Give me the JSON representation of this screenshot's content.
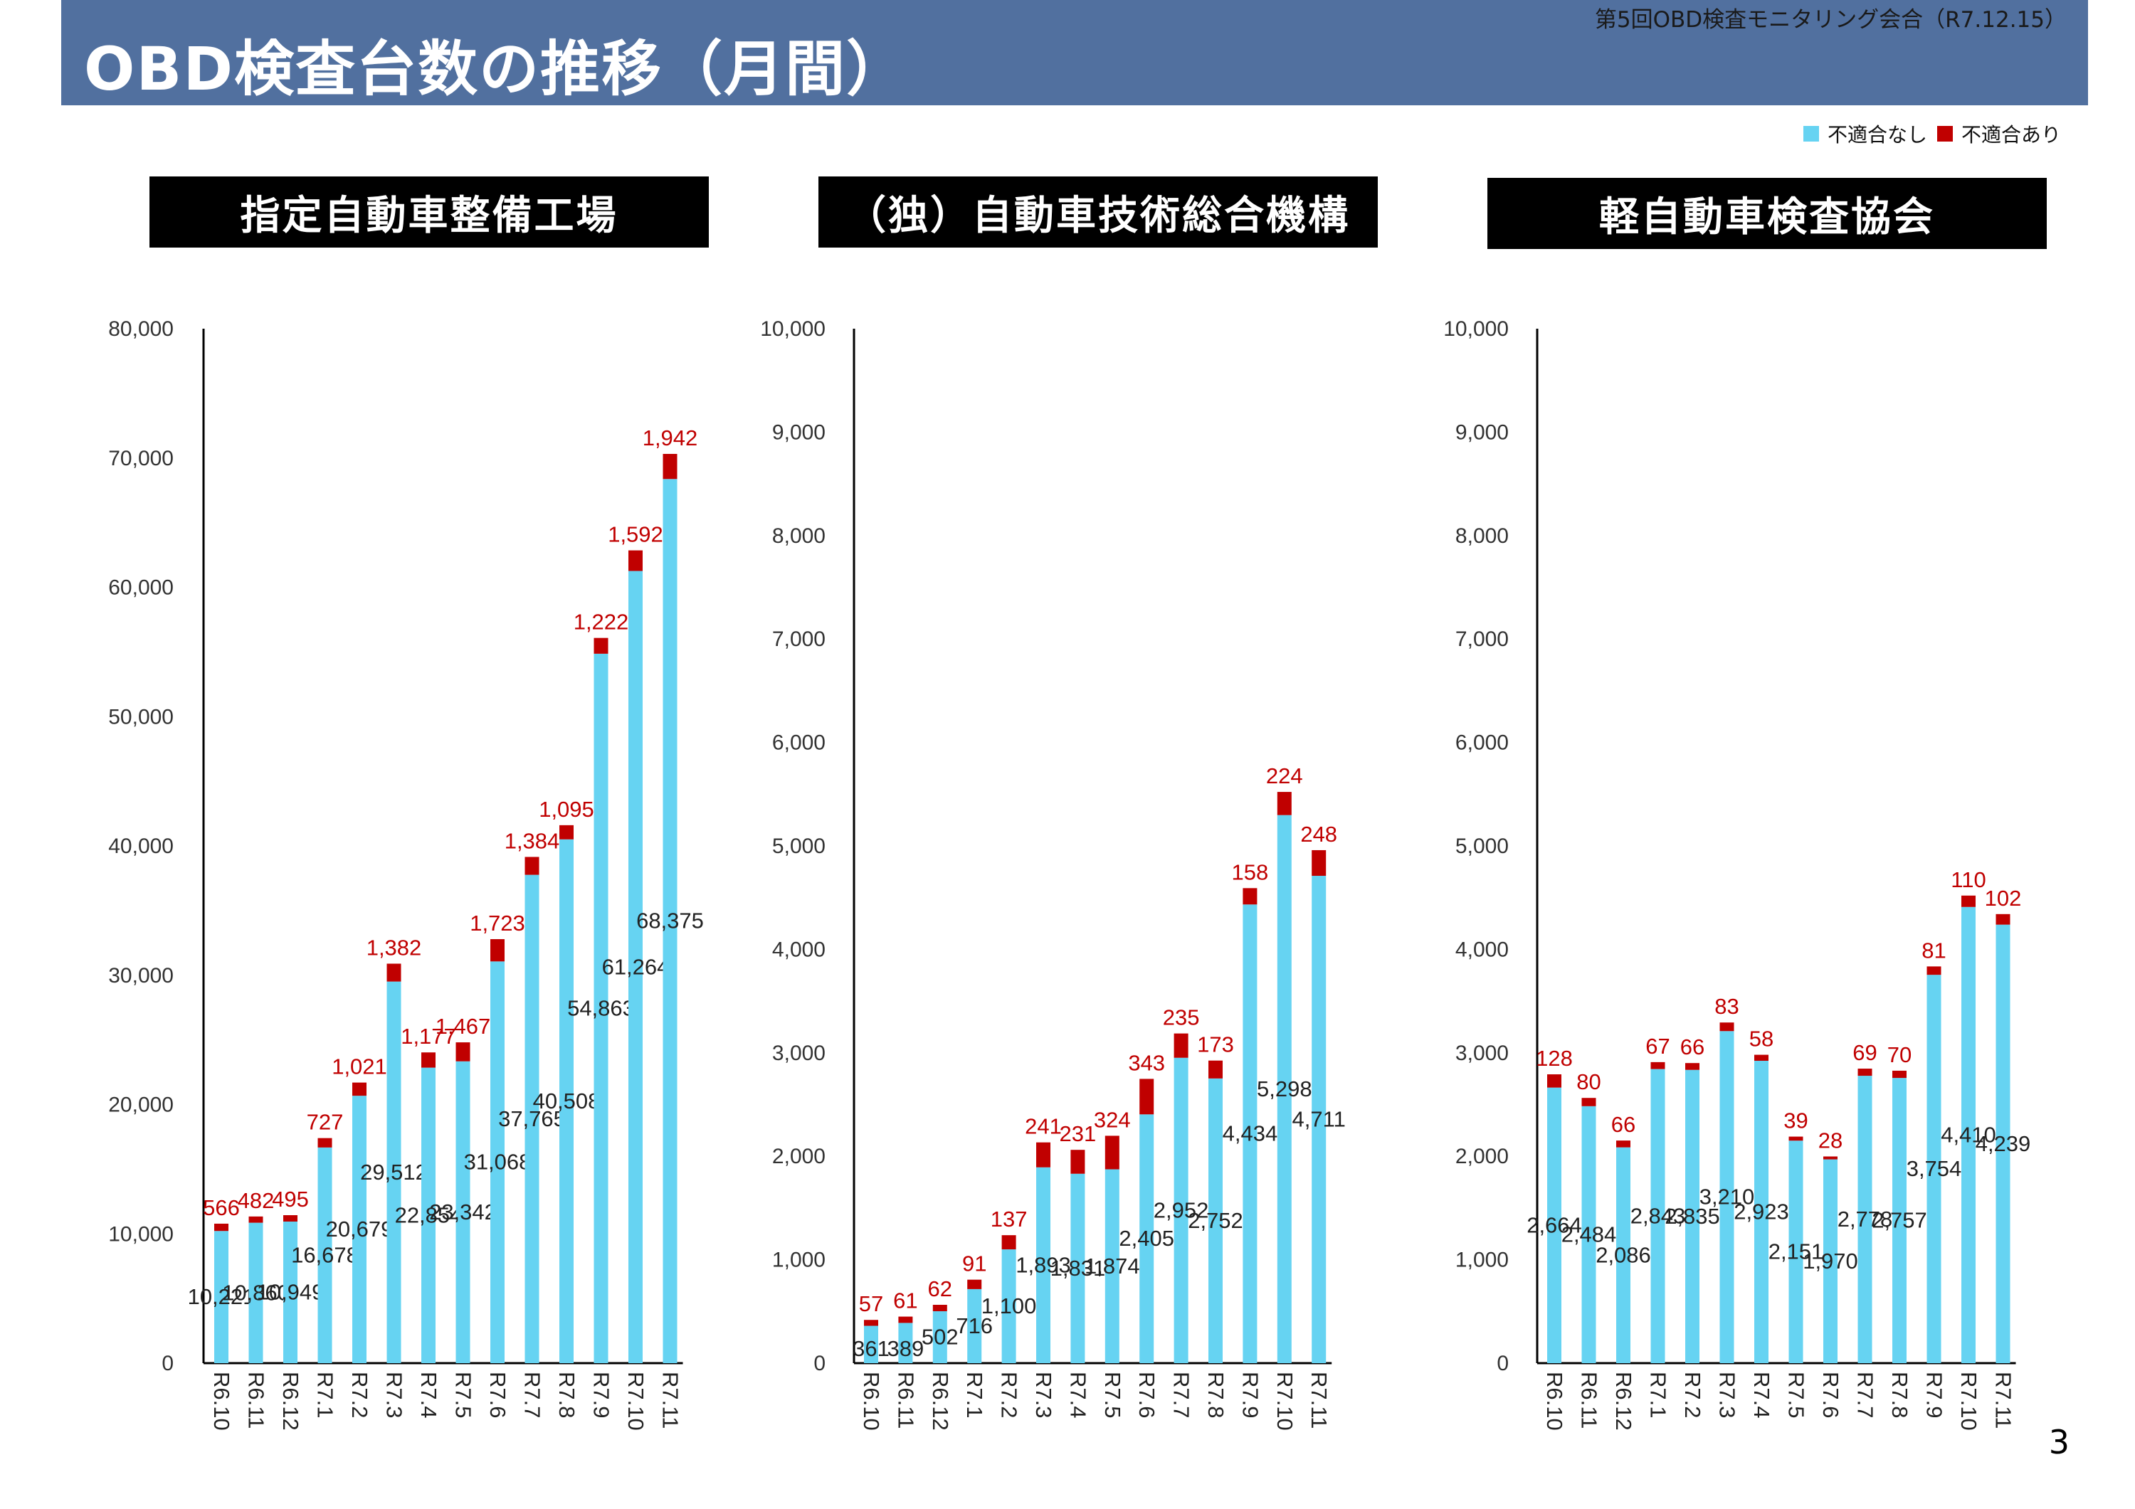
{
  "header": {
    "title": "OBD検査台数の推移（月間）",
    "meeting": "第5回OBD検査モニタリング会合（R7.12.15）"
  },
  "legend": {
    "no_fail": "不適合なし",
    "fail": "不適合あり"
  },
  "colors": {
    "no_fail": "#66d3f2",
    "fail": "#c00000",
    "fail_label": "#c00000",
    "header_bg": "#51709f"
  },
  "page_number": "3",
  "chart_data": [
    {
      "type": "bar",
      "stacked": true,
      "title": "指定自動車整備工場",
      "categories": [
        "R6.10",
        "R6.11",
        "R6.12",
        "R7.1",
        "R7.2",
        "R7.3",
        "R7.4",
        "R7.5",
        "R7.6",
        "R7.7",
        "R7.8",
        "R7.9",
        "R7.10",
        "R7.11"
      ],
      "ylim": [
        0,
        80000
      ],
      "yticks": [
        0,
        10000,
        20000,
        30000,
        40000,
        50000,
        60000,
        70000,
        80000
      ],
      "ytick_labels": [
        "0",
        "10,000",
        "20,000",
        "30,000",
        "40,000",
        "50,000",
        "60,000",
        "70,000",
        "80,000"
      ],
      "series": [
        {
          "name": "不適合なし",
          "values": [
            10221,
            10860,
            10949,
            16678,
            20679,
            29512,
            22854,
            23342,
            31068,
            37765,
            40508,
            54863,
            61264,
            68375
          ],
          "labels": [
            "10,221",
            "10,860",
            "10,949",
            "16,678",
            "20,679",
            "29,512",
            "22,854",
            "23,342",
            "31,068",
            "37,765",
            "40,508",
            "54,863",
            "61,264",
            "68,375"
          ]
        },
        {
          "name": "不適合あり",
          "values": [
            566,
            482,
            495,
            727,
            1021,
            1382,
            1177,
            1467,
            1723,
            1384,
            1095,
            1222,
            1592,
            1942
          ],
          "labels": [
            "566",
            "482",
            "495",
            "727",
            "1,021",
            "1,382",
            "1,177",
            "1,467",
            "1,723",
            "1,384",
            "1,095",
            "1,222",
            "1,592",
            "1,942"
          ]
        }
      ]
    },
    {
      "type": "bar",
      "stacked": true,
      "title": "（独）自動車技術総合機構",
      "categories": [
        "R6.10",
        "R6.11",
        "R6.12",
        "R7.1",
        "R7.2",
        "R7.3",
        "R7.4",
        "R7.5",
        "R7.6",
        "R7.7",
        "R7.8",
        "R7.9",
        "R7.10",
        "R7.11"
      ],
      "ylim": [
        0,
        10000
      ],
      "yticks": [
        0,
        1000,
        2000,
        3000,
        4000,
        5000,
        6000,
        7000,
        8000,
        9000,
        10000
      ],
      "ytick_labels": [
        "0",
        "1,000",
        "2,000",
        "3,000",
        "4,000",
        "5,000",
        "6,000",
        "7,000",
        "8,000",
        "9,000",
        "10,000"
      ],
      "series": [
        {
          "name": "不適合なし",
          "values": [
            361,
            389,
            502,
            716,
            1100,
            1893,
            1831,
            1874,
            2405,
            2952,
            2752,
            4434,
            5298,
            4711
          ],
          "labels": [
            "361",
            "389",
            "502",
            "716",
            "1,100",
            "1,893",
            "1,831",
            "1,874",
            "2,405",
            "2,952",
            "2,752",
            "4,434",
            "5,298",
            "4,711"
          ]
        },
        {
          "name": "不適合あり",
          "values": [
            57,
            61,
            62,
            91,
            137,
            241,
            231,
            324,
            343,
            235,
            173,
            158,
            224,
            248
          ],
          "labels": [
            "57",
            "61",
            "62",
            "91",
            "137",
            "241",
            "231",
            "324",
            "343",
            "235",
            "173",
            "158",
            "224",
            "248"
          ]
        }
      ]
    },
    {
      "type": "bar",
      "stacked": true,
      "title": "軽自動車検査協会",
      "categories": [
        "R6.10",
        "R6.11",
        "R6.12",
        "R7.1",
        "R7.2",
        "R7.3",
        "R7.4",
        "R7.5",
        "R7.6",
        "R7.7",
        "R7.8",
        "R7.9",
        "R7.10",
        "R7.11"
      ],
      "ylim": [
        0,
        10000
      ],
      "yticks": [
        0,
        1000,
        2000,
        3000,
        4000,
        5000,
        6000,
        7000,
        8000,
        9000,
        10000
      ],
      "ytick_labels": [
        "0",
        "1,000",
        "2,000",
        "3,000",
        "4,000",
        "5,000",
        "6,000",
        "7,000",
        "8,000",
        "9,000",
        "10,000"
      ],
      "series": [
        {
          "name": "不適合なし",
          "values": [
            2664,
            2484,
            2086,
            2843,
            2835,
            3210,
            2923,
            2151,
            1970,
            2778,
            2757,
            3754,
            4410,
            4239
          ],
          "labels": [
            "2,664",
            "2,484",
            "2,086",
            "2,843",
            "2,835",
            "3,210",
            "2,923",
            "2,151",
            "1,970",
            "2,778",
            "2,757",
            "3,754",
            "4,410",
            "4,239"
          ]
        },
        {
          "name": "不適合あり",
          "values": [
            128,
            80,
            66,
            67,
            66,
            83,
            58,
            39,
            28,
            69,
            70,
            81,
            110,
            102
          ],
          "labels": [
            "128",
            "80",
            "66",
            "67",
            "66",
            "83",
            "58",
            "39",
            "28",
            "69",
            "70",
            "81",
            "110",
            "102"
          ]
        }
      ]
    }
  ]
}
